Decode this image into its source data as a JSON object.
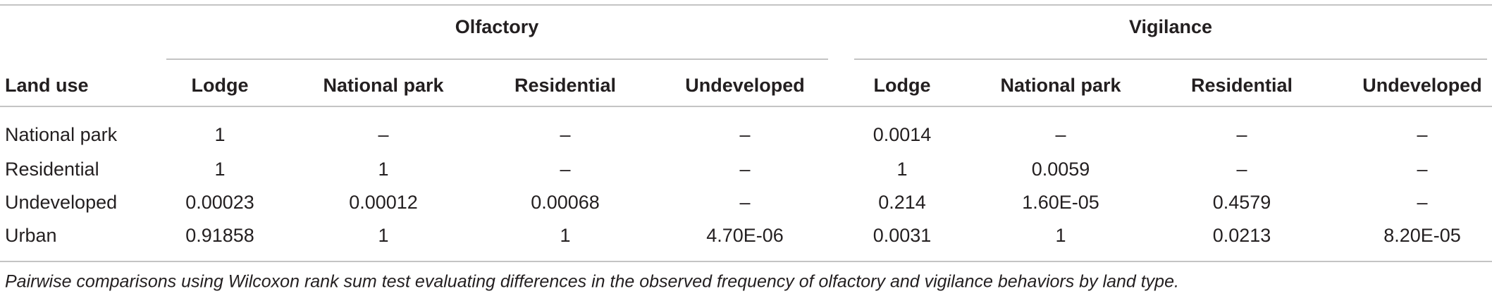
{
  "header": {
    "groups": [
      "Olfactory",
      "Vigilance"
    ],
    "row_label": "Land use",
    "columns": [
      "Lodge",
      "National park",
      "Residential",
      "Undeveloped",
      "Lodge",
      "National park",
      "Residential",
      "Undeveloped"
    ]
  },
  "table": {
    "rows": [
      {
        "label": "National park",
        "cells": [
          "1",
          "–",
          "–",
          "–",
          "0.0014",
          "–",
          "–",
          "–"
        ]
      },
      {
        "label": "Residential",
        "cells": [
          "1",
          "1",
          "–",
          "–",
          "1",
          "0.0059",
          "–",
          "–"
        ]
      },
      {
        "label": "Undeveloped",
        "cells": [
          "0.00023",
          "0.00012",
          "0.00068",
          "–",
          "0.214",
          "1.60E-05",
          "0.4579",
          "–"
        ]
      },
      {
        "label": "Urban",
        "cells": [
          "0.91858",
          "1",
          "1",
          "4.70E-06",
          "0.0031",
          "1",
          "0.0213",
          "8.20E-05"
        ]
      }
    ]
  },
  "caption": "Pairwise comparisons using Wilcoxon rank sum test evaluating differences in the observed frequency of olfactory and vigilance behaviors by land type."
}
